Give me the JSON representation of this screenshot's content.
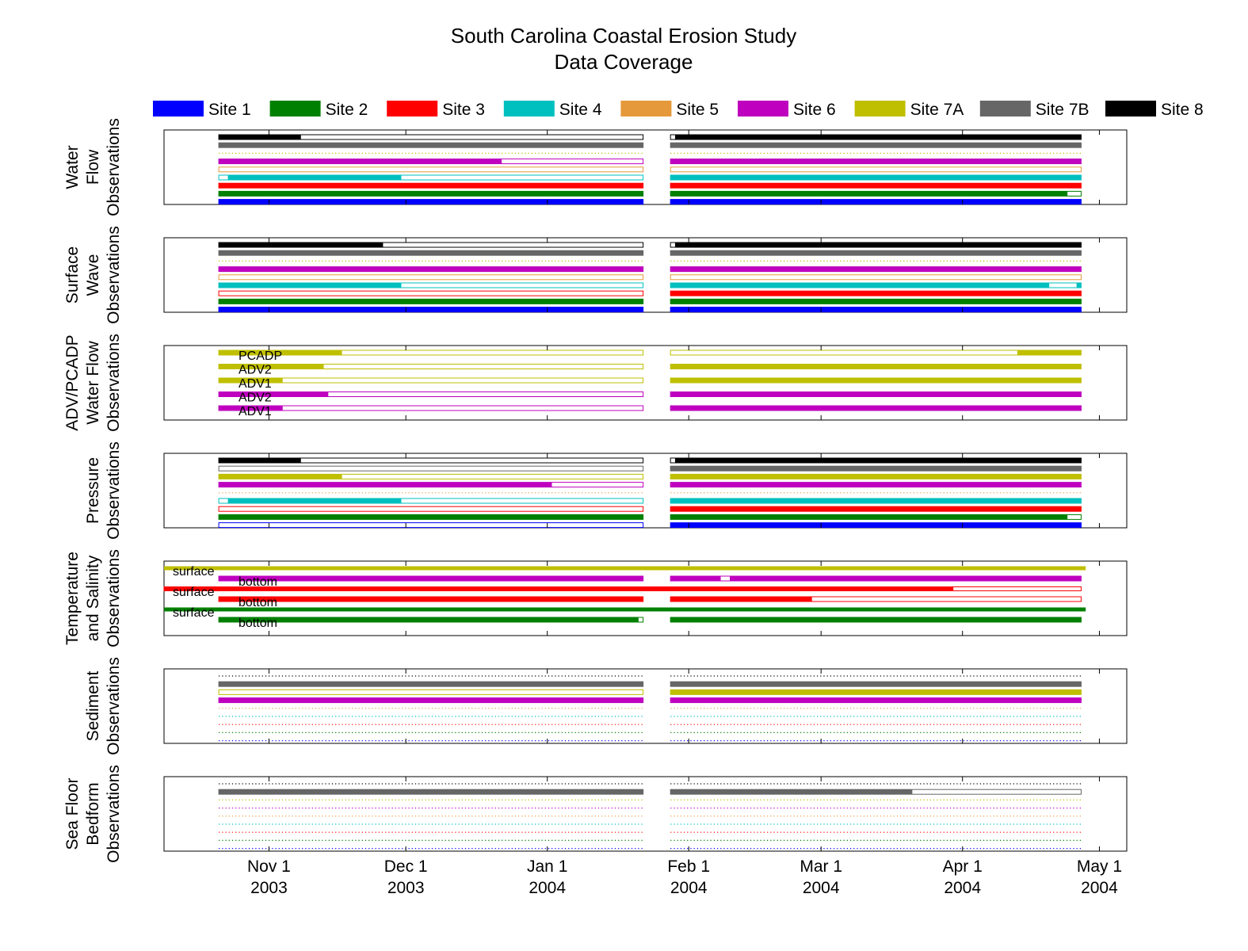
{
  "chart_data": {
    "type": "timeline",
    "title": [
      "South Carolina Coastal Erosion Study",
      "Data Coverage"
    ],
    "x_range": [
      "2003-10-09",
      "2004-05-07"
    ],
    "grid": false,
    "legend_position": "top",
    "x_ticks": [
      {
        "date": "2003-11-01",
        "label": [
          "Nov 1",
          "2003"
        ]
      },
      {
        "date": "2003-12-01",
        "label": [
          "Dec 1",
          "2003"
        ]
      },
      {
        "date": "2004-01-01",
        "label": [
          "Jan 1",
          "2004"
        ]
      },
      {
        "date": "2004-02-01",
        "label": [
          "Feb 1",
          "2004"
        ]
      },
      {
        "date": "2004-03-01",
        "label": [
          "Mar 1",
          "2004"
        ]
      },
      {
        "date": "2004-04-01",
        "label": [
          "Apr 1",
          "2004"
        ]
      },
      {
        "date": "2004-05-01",
        "label": [
          "May 1",
          "2004"
        ]
      }
    ],
    "deployments": [
      {
        "start": "2003-10-21",
        "end": "2004-01-22"
      },
      {
        "start": "2004-01-28",
        "end": "2004-04-27"
      }
    ],
    "sites": [
      {
        "name": "Site 1",
        "color": "#0000ff"
      },
      {
        "name": "Site 2",
        "color": "#008000"
      },
      {
        "name": "Site 3",
        "color": "#ff0000"
      },
      {
        "name": "Site 4",
        "color": "#00bfbf"
      },
      {
        "name": "Site 5",
        "color": "#e5993a"
      },
      {
        "name": "Site 6",
        "color": "#bf00bf"
      },
      {
        "name": "Site 7A",
        "color": "#bfbf00"
      },
      {
        "name": "Site 7B",
        "color": "#666666"
      },
      {
        "name": "Site 8",
        "color": "#000000"
      }
    ],
    "panels": [
      {
        "ylabel": [
          "Water",
          "Flow",
          "Observations"
        ],
        "rows": [
          {
            "site": "Site 8",
            "dep1": [
              [
                "2003-10-21",
                "2003-11-08"
              ]
            ],
            "dep2": [
              [
                "2004-01-29",
                "2004-04-27"
              ]
            ]
          },
          {
            "site": "Site 7B",
            "dep1": [
              [
                "2003-10-21",
                "2004-01-22"
              ]
            ],
            "dep2": [
              [
                "2004-01-28",
                "2004-04-27"
              ]
            ]
          },
          {
            "site": "Site 7A",
            "dotted": true
          },
          {
            "site": "Site 6",
            "dep1": [
              [
                "2003-10-21",
                "2003-12-22"
              ]
            ],
            "dep2": [
              [
                "2004-01-28",
                "2004-04-27"
              ]
            ]
          },
          {
            "site": "Site 5",
            "dep1": [],
            "dep2": []
          },
          {
            "site": "Site 4",
            "dep1": [
              [
                "2003-10-23",
                "2003-11-30"
              ]
            ],
            "dep2": [
              [
                "2004-01-28",
                "2004-04-27"
              ]
            ]
          },
          {
            "site": "Site 3",
            "dep1": [
              [
                "2003-10-21",
                "2004-01-22"
              ]
            ],
            "dep2": [
              [
                "2004-01-28",
                "2004-04-27"
              ]
            ]
          },
          {
            "site": "Site 2",
            "dep1": [
              [
                "2003-10-21",
                "2004-01-22"
              ]
            ],
            "dep2": [
              [
                "2004-01-28",
                "2004-04-24"
              ]
            ]
          },
          {
            "site": "Site 1",
            "dep1": [
              [
                "2003-10-21",
                "2004-01-22"
              ]
            ],
            "dep2": [
              [
                "2004-01-28",
                "2004-04-27"
              ]
            ]
          }
        ]
      },
      {
        "ylabel": [
          "Surface",
          "Wave",
          "Observations"
        ],
        "rows": [
          {
            "site": "Site 8",
            "dep1": [
              [
                "2003-10-21",
                "2003-11-26"
              ]
            ],
            "dep2": [
              [
                "2004-01-29",
                "2004-04-27"
              ]
            ]
          },
          {
            "site": "Site 7B",
            "dep1": [
              [
                "2003-10-21",
                "2004-01-22"
              ]
            ],
            "dep2": [
              [
                "2004-01-28",
                "2004-04-27"
              ]
            ]
          },
          {
            "site": "Site 7A",
            "dotted": true
          },
          {
            "site": "Site 6",
            "dep1": [
              [
                "2003-10-21",
                "2004-01-22"
              ]
            ],
            "dep2": [
              [
                "2004-01-28",
                "2004-04-27"
              ]
            ]
          },
          {
            "site": "Site 5",
            "dep1": [],
            "dep2": []
          },
          {
            "site": "Site 4",
            "dep1": [
              [
                "2003-10-21",
                "2003-11-30"
              ]
            ],
            "dep2": [
              [
                "2004-01-28",
                "2004-04-20"
              ],
              [
                "2004-04-26",
                "2004-04-27"
              ]
            ]
          },
          {
            "site": "Site 3",
            "dep1": [],
            "dep2": [
              [
                "2004-01-28",
                "2004-04-27"
              ]
            ]
          },
          {
            "site": "Site 2",
            "dep1": [
              [
                "2003-10-21",
                "2004-01-22"
              ]
            ],
            "dep2": [
              [
                "2004-01-28",
                "2004-04-27"
              ]
            ]
          },
          {
            "site": "Site 1",
            "dep1": [
              [
                "2003-10-21",
                "2004-01-22"
              ]
            ],
            "dep2": [
              [
                "2004-01-28",
                "2004-04-27"
              ]
            ]
          }
        ]
      },
      {
        "ylabel": [
          "ADV/PCADP",
          "Water Flow",
          "Observations"
        ],
        "rows": [
          {
            "site": "Site 7A",
            "label": "PCADP",
            "dep1": [
              [
                "2003-10-21",
                "2003-11-17"
              ]
            ],
            "dep2": [
              [
                "2004-04-13",
                "2004-04-27"
              ]
            ]
          },
          {
            "site": "Site 7A",
            "label": "ADV2",
            "dep1": [
              [
                "2003-10-21",
                "2003-11-13"
              ]
            ],
            "dep2": [
              [
                "2004-01-28",
                "2004-04-27"
              ]
            ]
          },
          {
            "site": "Site 7A",
            "label": "ADV1",
            "dep1": [
              [
                "2003-10-21",
                "2003-11-04"
              ]
            ],
            "dep2": [
              [
                "2004-01-28",
                "2004-04-27"
              ]
            ]
          },
          {
            "site": "Site 6",
            "label": "ADV2",
            "dep1": [
              [
                "2003-10-21",
                "2003-11-14"
              ]
            ],
            "dep2": [
              [
                "2004-01-28",
                "2004-04-27"
              ]
            ]
          },
          {
            "site": "Site 6",
            "label": "ADV1",
            "dep1": [
              [
                "2003-10-21",
                "2003-11-04"
              ]
            ],
            "dep2": [
              [
                "2004-01-28",
                "2004-04-27"
              ]
            ]
          }
        ]
      },
      {
        "ylabel": [
          "Pressure",
          "Observations"
        ],
        "rows": [
          {
            "site": "Site 8",
            "dep1": [
              [
                "2003-10-21",
                "2003-11-08"
              ]
            ],
            "dep2": [
              [
                "2004-01-29",
                "2004-04-27"
              ]
            ]
          },
          {
            "site": "Site 7B",
            "dep1": [],
            "dep2": [
              [
                "2004-01-28",
                "2004-04-27"
              ]
            ]
          },
          {
            "site": "Site 7A",
            "dep1": [
              [
                "2003-10-21",
                "2003-11-17"
              ]
            ],
            "dep2": [
              [
                "2004-01-28",
                "2004-04-27"
              ]
            ]
          },
          {
            "site": "Site 6",
            "dep1": [
              [
                "2003-10-21",
                "2004-01-02"
              ]
            ],
            "dep2": [
              [
                "2004-01-28",
                "2004-04-27"
              ]
            ]
          },
          {
            "site": "Site 5",
            "dotted": true
          },
          {
            "site": "Site 4",
            "dep1": [
              [
                "2003-10-23",
                "2003-11-30"
              ]
            ],
            "dep2": [
              [
                "2004-01-28",
                "2004-04-27"
              ]
            ]
          },
          {
            "site": "Site 3",
            "dep1": [],
            "dep2": [
              [
                "2004-01-28",
                "2004-04-27"
              ]
            ]
          },
          {
            "site": "Site 2",
            "dep1": [
              [
                "2003-10-21",
                "2004-01-22"
              ]
            ],
            "dep2": [
              [
                "2004-01-28",
                "2004-04-24"
              ]
            ]
          },
          {
            "site": "Site 1",
            "dep1": [],
            "dep2": [
              [
                "2004-01-28",
                "2004-04-27"
              ]
            ]
          }
        ]
      },
      {
        "ylabel": [
          "Temperature",
          "and Salinity",
          "Observations"
        ],
        "rows": [
          {
            "site": "Site 7A",
            "label": "surface",
            "continuous": [
              "2003-10-09",
              "2004-04-28"
            ]
          },
          {
            "site": "Site 6",
            "label": "bottom",
            "dep1": [
              [
                "2003-10-21",
                "2004-01-22"
              ]
            ],
            "dep2": [
              [
                "2004-01-28",
                "2004-02-08"
              ],
              [
                "2004-02-10",
                "2004-04-27"
              ]
            ]
          },
          {
            "site": "Site 3",
            "label": "surface",
            "continuous": [
              "2003-10-09",
              "2004-03-30"
            ],
            "box": [
              "2003-10-09",
              "2004-04-27"
            ]
          },
          {
            "site": "Site 3",
            "label": "bottom",
            "dep1": [
              [
                "2003-10-21",
                "2004-01-22"
              ]
            ],
            "dep2": [
              [
                "2004-01-28",
                "2004-02-28"
              ]
            ]
          },
          {
            "site": "Site 2",
            "label": "surface",
            "continuous": [
              "2003-10-09",
              "2004-04-28"
            ]
          },
          {
            "site": "Site 2",
            "label": "bottom",
            "dep1": [
              [
                "2003-10-21",
                "2004-01-21"
              ]
            ],
            "dep2": [
              [
                "2004-01-28",
                "2004-04-27"
              ]
            ]
          }
        ]
      },
      {
        "ylabel": [
          "Sediment",
          "Observations"
        ],
        "rows": [
          {
            "site": "Site 8",
            "dotted": true
          },
          {
            "site": "Site 7B",
            "dep1": [
              [
                "2003-10-21",
                "2004-01-22"
              ]
            ],
            "dep2": [
              [
                "2004-01-28",
                "2004-04-27"
              ]
            ]
          },
          {
            "site": "Site 7A",
            "dep1": [],
            "dep2": [
              [
                "2004-01-28",
                "2004-04-27"
              ]
            ]
          },
          {
            "site": "Site 6",
            "dep1": [
              [
                "2003-10-21",
                "2004-01-22"
              ]
            ],
            "dep2": [
              [
                "2004-01-28",
                "2004-04-27"
              ]
            ]
          },
          {
            "site": "Site 5",
            "dotted": true
          },
          {
            "site": "Site 4",
            "dotted": true
          },
          {
            "site": "Site 3",
            "dotted": true
          },
          {
            "site": "Site 2",
            "dotted": true
          },
          {
            "site": "Site 1",
            "dotted": true
          }
        ]
      },
      {
        "ylabel": [
          "Sea Floor",
          "Bedform",
          "Observations"
        ],
        "rows": [
          {
            "site": "Site 8",
            "dotted": true
          },
          {
            "site": "Site 7B",
            "dep1": [
              [
                "2003-10-21",
                "2004-01-22"
              ]
            ],
            "dep2": [
              [
                "2004-01-28",
                "2004-03-21"
              ]
            ]
          },
          {
            "site": "Site 7A",
            "dotted": true
          },
          {
            "site": "Site 6",
            "dotted": true
          },
          {
            "site": "Site 5",
            "dotted": true
          },
          {
            "site": "Site 4",
            "dotted": true
          },
          {
            "site": "Site 3",
            "dotted": true
          },
          {
            "site": "Site 2",
            "dotted": true
          },
          {
            "site": "Site 1",
            "dotted": true
          }
        ]
      }
    ]
  }
}
